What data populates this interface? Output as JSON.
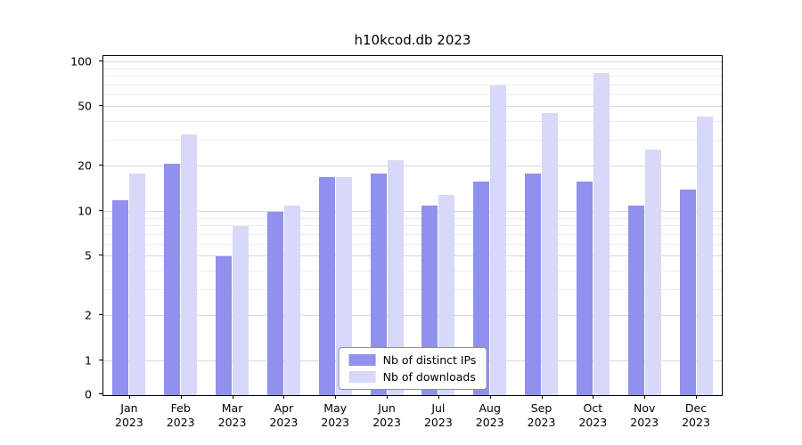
{
  "title": "h10kcod.db 2023",
  "chart_data": {
    "type": "bar",
    "title": "h10kcod.db 2023",
    "categories": [
      "Jan",
      "Feb",
      "Mar",
      "Apr",
      "May",
      "Jun",
      "Jul",
      "Aug",
      "Sep",
      "Oct",
      "Nov",
      "Dec"
    ],
    "category_year": "2023",
    "series": [
      {
        "name": "Nb of distinct IPs",
        "color": "#9090ee",
        "values": [
          12,
          21,
          5,
          10,
          17,
          18,
          11,
          16,
          18,
          16,
          11,
          14
        ]
      },
      {
        "name": "Nb of downloads",
        "color": "#d8d8f8",
        "values": [
          18,
          33,
          8,
          11,
          17,
          22,
          13,
          70,
          46,
          85,
          26,
          43
        ]
      }
    ],
    "y_scale": "symlog",
    "y_ticks": [
      0,
      1,
      2,
      5,
      10,
      20,
      50,
      100
    ],
    "ylim": [
      0,
      110
    ],
    "grid": true,
    "legend_position": "lower center"
  }
}
